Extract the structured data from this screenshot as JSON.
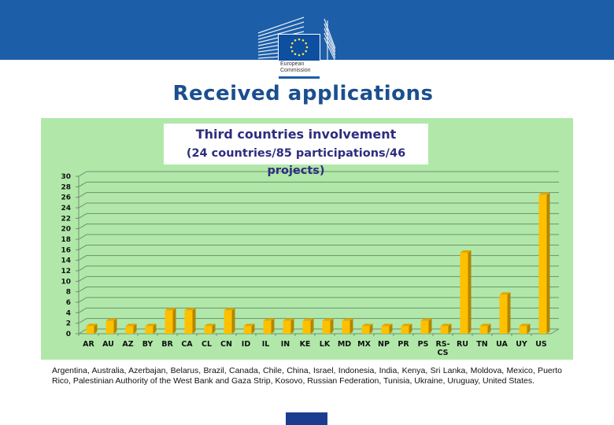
{
  "header": {
    "logo": {
      "name": "European Commission",
      "line1": "European",
      "line2": "Commission",
      "icon": "eu-flag-icon"
    },
    "banner_color": "#1c5ea8"
  },
  "slide": {
    "title": "Received applications",
    "title_color": "#1b4f8e",
    "panel_color": "#b1e8aa",
    "bar_color": "#ffc000",
    "footnote": "Argentina, Australia, Azerbajan, Belarus, Brazil, Canada, Chile, China, Israel, Indonesia, India, Kenya, Sri Lanka, Moldova, Mexico, Puerto Rico, Palestinian  Authority of the West Bank and Gaza Strip, Kosovo, Russian Federation, Tunisia, Ukraine, Uruguay, United States."
  },
  "chart_data": {
    "type": "bar",
    "title": "Third countries involvement",
    "subtitle": "(24 countries/85 participations/46 projects)",
    "xlabel": "",
    "ylabel": "",
    "categories": [
      "AR",
      "AU",
      "AZ",
      "BY",
      "BR",
      "CA",
      "CL",
      "CN",
      "ID",
      "IL",
      "IN",
      "KE",
      "LK",
      "MD",
      "MX",
      "NP",
      "PR",
      "PS",
      "RS-CS",
      "RU",
      "TN",
      "UA",
      "UY",
      "US"
    ],
    "values": [
      1,
      2,
      1,
      1,
      4,
      4,
      1,
      4,
      1,
      2,
      2,
      2,
      2,
      2,
      1,
      1,
      1,
      2,
      1,
      15,
      1,
      7,
      1,
      26
    ],
    "ylim": [
      0,
      30
    ],
    "yticks": [
      0,
      2,
      4,
      6,
      8,
      10,
      12,
      14,
      16,
      18,
      20,
      22,
      24,
      26,
      28,
      30
    ],
    "grid": true,
    "legend": "none",
    "style": "3d-column"
  }
}
